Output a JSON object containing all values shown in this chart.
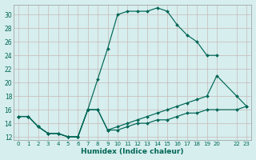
{
  "xlabel": "Humidex (Indice chaleur)",
  "background_color": "#d6eeee",
  "grid_color": "#c8b8b8",
  "line_color": "#006655",
  "xlim": [
    -0.5,
    23.5
  ],
  "ylim": [
    11.5,
    31.5
  ],
  "xtick_positions": [
    0,
    1,
    2,
    3,
    4,
    5,
    6,
    7,
    8,
    9,
    10,
    11,
    12,
    13,
    14,
    15,
    16,
    17,
    18,
    19,
    20,
    22,
    23
  ],
  "xtick_labels": [
    "0",
    "1",
    "2",
    "3",
    "4",
    "5",
    "6",
    "7",
    "8",
    "9",
    "10",
    "11",
    "12",
    "13",
    "14",
    "15",
    "16",
    "17",
    "18",
    "19",
    "20",
    "22",
    "23"
  ],
  "yticks": [
    12,
    14,
    16,
    18,
    20,
    22,
    24,
    26,
    28,
    30
  ],
  "line1_x": [
    0,
    1,
    2,
    3,
    4,
    5,
    6,
    7,
    8,
    9,
    10,
    11,
    12,
    13,
    14,
    15,
    16,
    17,
    18,
    19,
    20
  ],
  "line1_y": [
    15,
    15,
    13.5,
    12.5,
    12.5,
    12,
    12,
    16,
    20.5,
    25,
    30,
    30.5,
    30.5,
    30.5,
    31,
    30.5,
    28.5,
    27,
    26,
    24,
    24
  ],
  "line2_x": [
    0,
    1,
    2,
    3,
    4,
    5,
    6,
    7,
    8,
    9,
    10,
    11,
    12,
    13,
    14,
    15,
    16,
    17,
    18,
    19,
    20,
    22,
    23
  ],
  "line2_y": [
    15,
    15,
    13.5,
    12.5,
    12.5,
    12,
    12,
    16,
    16,
    13,
    13.5,
    14,
    14.5,
    15,
    15.5,
    16,
    16.5,
    17,
    17.5,
    18,
    21,
    18,
    16.5
  ],
  "line3_x": [
    0,
    1,
    2,
    3,
    4,
    5,
    6,
    7,
    8,
    9,
    10,
    11,
    12,
    13,
    14,
    15,
    16,
    17,
    18,
    19,
    20,
    22,
    23
  ],
  "line3_y": [
    15,
    15,
    13.5,
    12.5,
    12.5,
    12,
    12,
    16,
    16,
    13,
    13,
    13.5,
    14,
    14,
    14.5,
    14.5,
    15,
    15.5,
    15.5,
    16,
    16,
    16,
    16.5
  ]
}
